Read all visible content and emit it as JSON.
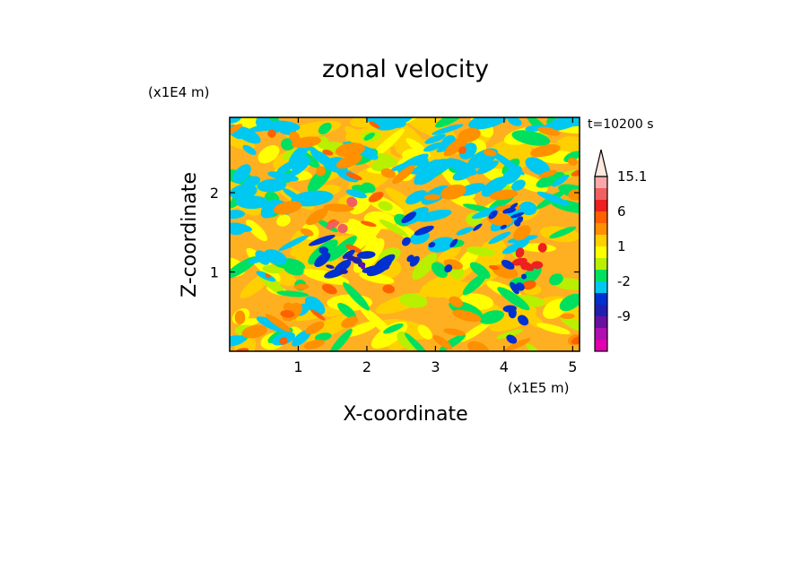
{
  "chart_data": {
    "type": "heatmap",
    "title": "zonal velocity",
    "xlabel": "X-coordinate",
    "ylabel": "Z-coordinate",
    "x_unit": "(x1E5 m)",
    "y_unit": "(x1E4 m)",
    "time_label": "t=10200 s",
    "xlim": [
      0.0,
      5.1
    ],
    "ylim": [
      0.0,
      2.95
    ],
    "x_ticks": [
      1,
      2,
      3,
      4,
      5
    ],
    "y_ticks": [
      1,
      2
    ],
    "colorbar": {
      "levels": [
        {
          "color": "#e000b0"
        },
        {
          "color": "#b010b0"
        },
        {
          "color": "#6a10a0",
          "label": "-9"
        },
        {
          "color": "#2020b0"
        },
        {
          "color": "#0030d0"
        },
        {
          "color": "#00c8f0",
          "label": "-2"
        },
        {
          "color": "#00e060"
        },
        {
          "color": "#b8f000"
        },
        {
          "color": "#ffff00",
          "label": "1"
        },
        {
          "color": "#ffd000"
        },
        {
          "color": "#ff9000"
        },
        {
          "color": "#ff6000",
          "label": "6"
        },
        {
          "color": "#ee2020"
        },
        {
          "color": "#f06060"
        },
        {
          "color": "#f8a8a8",
          "label": "15.1"
        }
      ],
      "extend_top_color": "#ffe8e0"
    }
  }
}
